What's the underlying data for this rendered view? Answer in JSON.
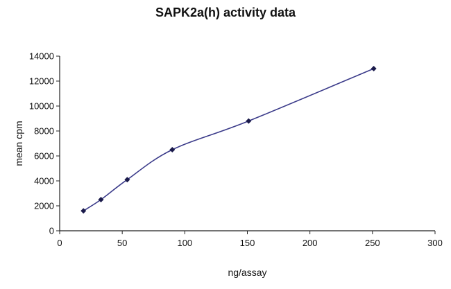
{
  "chart_data": {
    "type": "line",
    "title": "SAPK2a(h) activity data",
    "xlabel": "ng/assay",
    "ylabel": "mean cpm",
    "xlim": [
      0,
      300
    ],
    "ylim": [
      0,
      14000
    ],
    "x_ticks": [
      0,
      50,
      100,
      150,
      200,
      250,
      300
    ],
    "y_ticks": [
      0,
      2000,
      4000,
      6000,
      8000,
      10000,
      12000,
      14000
    ],
    "grid": false,
    "legend": "none",
    "series": [
      {
        "x": [
          19,
          33,
          54,
          90,
          151,
          251
        ],
        "y": [
          1600,
          2500,
          4100,
          6500,
          8800,
          13000
        ],
        "color": "#3b3b8a",
        "marker_color": "#1a1a4a"
      }
    ]
  }
}
